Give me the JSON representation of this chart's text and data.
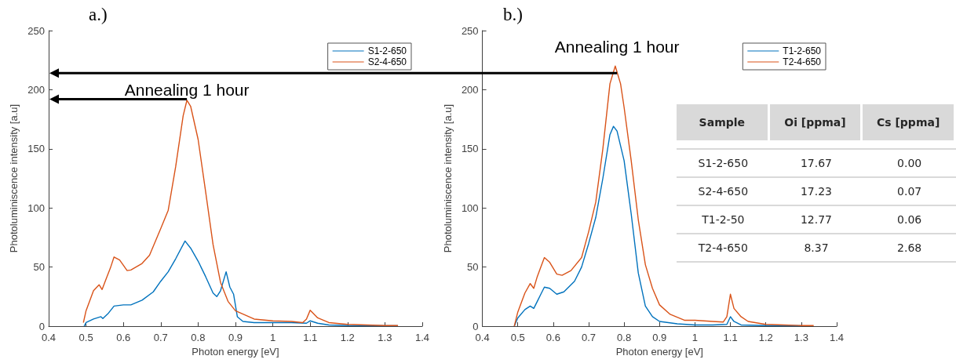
{
  "chart_data": [
    {
      "type": "line",
      "title": "a.)",
      "xlabel": "Photon energy [eV]",
      "ylabel": "Photoluminiscence intensity [a.u]",
      "xlim": [
        0.4,
        1.4
      ],
      "ylim": [
        0,
        250
      ],
      "xticks": [
        0.4,
        0.5,
        0.6,
        0.7,
        0.8,
        0.9,
        1,
        1.1,
        1.2,
        1.3,
        1.4
      ],
      "yticks": [
        0,
        50,
        100,
        150,
        200,
        250
      ],
      "legend": "top right",
      "grid": false,
      "annotations": [
        {
          "text": "Annealing 1 hour",
          "x": 0.77,
          "y": 192
        }
      ],
      "series": [
        {
          "name": "S1-2-650",
          "color": "#0072bd",
          "x": [
            0.495,
            0.5,
            0.52,
            0.54,
            0.545,
            0.56,
            0.575,
            0.6,
            0.62,
            0.65,
            0.68,
            0.7,
            0.72,
            0.74,
            0.765,
            0.78,
            0.8,
            0.82,
            0.84,
            0.85,
            0.86,
            0.875,
            0.885,
            0.895,
            0.905,
            0.92,
            0.95,
            1,
            1.05,
            1.09,
            1.1,
            1.12,
            1.15,
            1.2,
            1.3,
            1.335
          ],
          "values": [
            0,
            3,
            6,
            8,
            6.5,
            11,
            17,
            18,
            18,
            22,
            29,
            38,
            46,
            57,
            72,
            66,
            55,
            42,
            28,
            25,
            30,
            46,
            33,
            27,
            8,
            4,
            3,
            3,
            3,
            2.5,
            4.5,
            2.5,
            1,
            0.5,
            0.3,
            0.3
          ]
        },
        {
          "name": "S2-4-650",
          "color": "#d95319",
          "x": [
            0.493,
            0.5,
            0.52,
            0.535,
            0.543,
            0.555,
            0.565,
            0.575,
            0.59,
            0.61,
            0.62,
            0.65,
            0.67,
            0.7,
            0.72,
            0.74,
            0.76,
            0.77,
            0.78,
            0.8,
            0.82,
            0.84,
            0.86,
            0.88,
            0.9,
            0.95,
            1,
            1.05,
            1.08,
            1.09,
            1.1,
            1.12,
            1.15,
            1.2,
            1.25,
            1.3,
            1.335
          ],
          "values": [
            3,
            13,
            30,
            35,
            31,
            41,
            49,
            58.5,
            56,
            47,
            47.5,
            53,
            60,
            82.5,
            98,
            135,
            178,
            191,
            186,
            158,
            114,
            69,
            37,
            21,
            13,
            6,
            4.5,
            4,
            3,
            6,
            13.5,
            7,
            3,
            1.5,
            1,
            0.5,
            0.5
          ]
        }
      ]
    },
    {
      "type": "line",
      "title": "b.)",
      "xlabel": "Photon energy [eV]",
      "ylabel": "Photoluminiscence intensity [a.u]",
      "xlim": [
        0.4,
        1.4
      ],
      "ylim": [
        0,
        250
      ],
      "xticks": [
        0.4,
        0.5,
        0.6,
        0.7,
        0.8,
        0.9,
        1,
        1.1,
        1.2,
        1.3,
        1.4
      ],
      "yticks": [
        0,
        50,
        100,
        150,
        200,
        250
      ],
      "legend": "top right",
      "grid": false,
      "annotations": [
        {
          "text": "Annealing 1 hour",
          "x": 0.78,
          "y": 214
        }
      ],
      "series": [
        {
          "name": "T1-2-650",
          "color": "#0072bd",
          "x": [
            0.49,
            0.5,
            0.52,
            0.535,
            0.545,
            0.555,
            0.565,
            0.575,
            0.59,
            0.61,
            0.63,
            0.66,
            0.68,
            0.7,
            0.72,
            0.74,
            0.76,
            0.77,
            0.78,
            0.8,
            0.82,
            0.84,
            0.86,
            0.88,
            0.9,
            0.95,
            1,
            1.05,
            1.09,
            1.1,
            1.11,
            1.13,
            1.2,
            1.3
          ],
          "values": [
            0,
            7,
            14,
            17,
            15,
            21,
            27,
            33,
            32,
            27,
            29,
            38,
            50,
            70,
            92,
            125,
            162,
            169,
            165,
            140,
            95,
            45,
            17,
            8,
            4,
            2,
            1,
            1,
            1.5,
            8,
            4,
            1,
            0.5,
            0.3
          ]
        },
        {
          "name": "T2-4-650",
          "color": "#d95319",
          "x": [
            0.49,
            0.5,
            0.52,
            0.535,
            0.545,
            0.555,
            0.565,
            0.575,
            0.59,
            0.61,
            0.625,
            0.65,
            0.68,
            0.7,
            0.72,
            0.74,
            0.76,
            0.775,
            0.79,
            0.8,
            0.82,
            0.84,
            0.86,
            0.88,
            0.9,
            0.93,
            0.97,
            1,
            1.05,
            1.08,
            1.09,
            1.1,
            1.11,
            1.13,
            1.15,
            1.2,
            1.25,
            1.3,
            1.335
          ],
          "values": [
            0,
            12,
            28,
            36,
            32,
            42,
            50,
            58,
            54,
            44,
            43,
            47,
            58,
            80,
            105,
            150,
            205,
            220,
            205,
            185,
            140,
            90,
            52,
            32,
            18,
            10,
            5,
            5,
            4,
            3.5,
            8,
            27,
            15,
            8,
            4,
            1.5,
            1,
            0.5,
            0.5
          ]
        }
      ]
    },
    {
      "type": "other",
      "categories": [
        "Sample",
        "Oi [ppma]",
        "Cs [ppma]"
      ],
      "annotations": [
        "S1-2-650",
        "17.67",
        "0.00",
        "S2-4-650",
        "17.23",
        "0.07",
        "T1-2-50",
        "12.77",
        "0.06",
        "T2-4-650",
        "8.37",
        "2.68"
      ]
    }
  ]
}
